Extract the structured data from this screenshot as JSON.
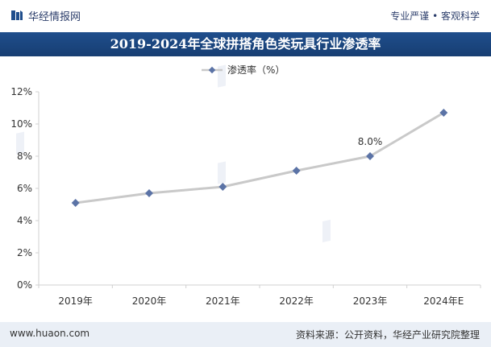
{
  "header": {
    "brand": "华经情报网",
    "slogan": "专业严谨 • 客观科学",
    "title": "2019-2024年全球拼搭角色类玩具行业渗透率"
  },
  "footer": {
    "website": "www.huaon.com",
    "source": "资料来源：公开资料，华经产业研究院整理"
  },
  "colors": {
    "title_bg": "#1f4e8c",
    "line": "#c9c9c9",
    "marker": "#5b73a6",
    "footer_bg": "#eaeff6"
  },
  "chart_data": {
    "type": "line",
    "title": "2019-2024年全球拼搭角色类玩具行业渗透率",
    "categories": [
      "2019年",
      "2020年",
      "2021年",
      "2022年",
      "2023年",
      "2024年E"
    ],
    "series": [
      {
        "name": "渗透率（%）",
        "values": [
          5.1,
          5.7,
          6.1,
          7.1,
          8.0,
          10.7
        ]
      }
    ],
    "yticks": [
      "0%",
      "2%",
      "4%",
      "6%",
      "8%",
      "10%",
      "12%"
    ],
    "ylim": [
      0,
      12
    ],
    "data_labels": [
      {
        "index": 4,
        "text": "8.0%"
      }
    ],
    "legend": "top-center",
    "grid": false
  }
}
